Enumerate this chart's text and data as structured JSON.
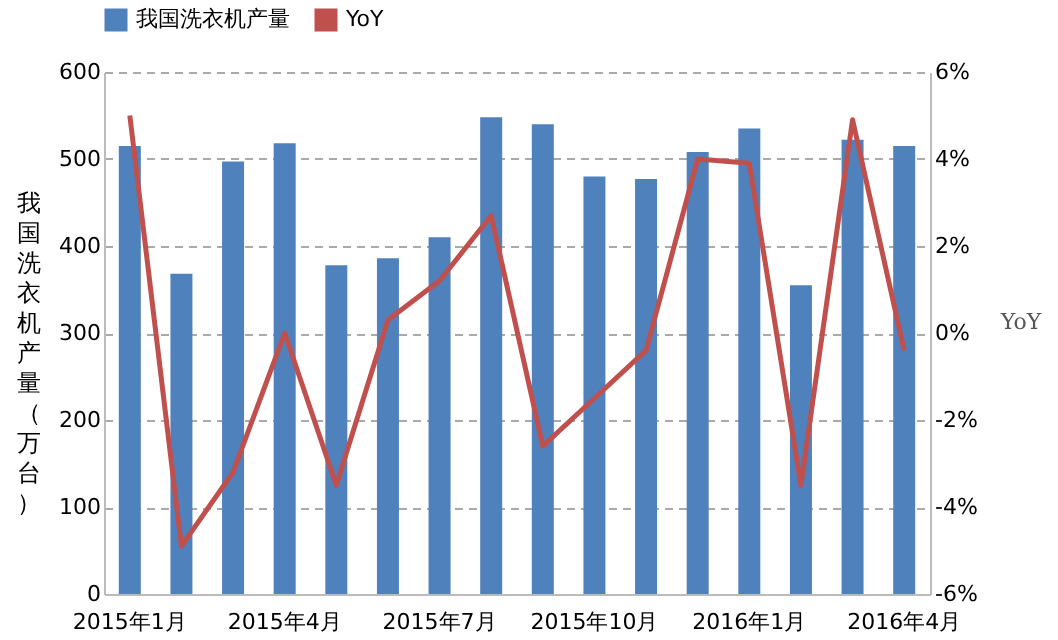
{
  "chart_data": {
    "type": "bar",
    "categories": [
      "2015年1月",
      null,
      null,
      "2015年4月",
      null,
      null,
      "2015年7月",
      null,
      null,
      "2015年10月",
      null,
      null,
      "2016年1月",
      null,
      null,
      "2016年4月"
    ],
    "ylabel": "我国洗衣机产量（万台）",
    "y2label": "YoY",
    "series": [
      {
        "name": "我国洗衣机产量",
        "color": "#4f81bd",
        "values": [
          515,
          368,
          497,
          518,
          378,
          386,
          410,
          548,
          540,
          480,
          477,
          508,
          535,
          355,
          522,
          515
        ]
      },
      {
        "name": "YoY",
        "type": "line",
        "axis": "y2",
        "color": "#c0504d",
        "values": [
          5.0,
          -4.9,
          -3.2,
          0.0,
          -3.5,
          0.3,
          1.2,
          2.7,
          -2.6,
          -1.5,
          -0.4,
          4.0,
          3.9,
          -3.5,
          4.9,
          -0.4
        ]
      }
    ],
    "ylim": [
      0,
      600
    ],
    "yticks": [
      0,
      100,
      200,
      300,
      400,
      500,
      600
    ],
    "y2lim": [
      -6,
      6
    ],
    "y2ticks": [
      {
        "value": -6,
        "label": "-6%"
      },
      {
        "value": -4,
        "label": "-4%"
      },
      {
        "value": -2,
        "label": "-2%"
      },
      {
        "value": 0,
        "label": "0%"
      },
      {
        "value": 2,
        "label": "2%"
      },
      {
        "value": 4,
        "label": "4%"
      },
      {
        "value": 6,
        "label": "6%"
      }
    ],
    "grid": "y",
    "legend": "top",
    "marker": "none",
    "line_style": "solid"
  }
}
